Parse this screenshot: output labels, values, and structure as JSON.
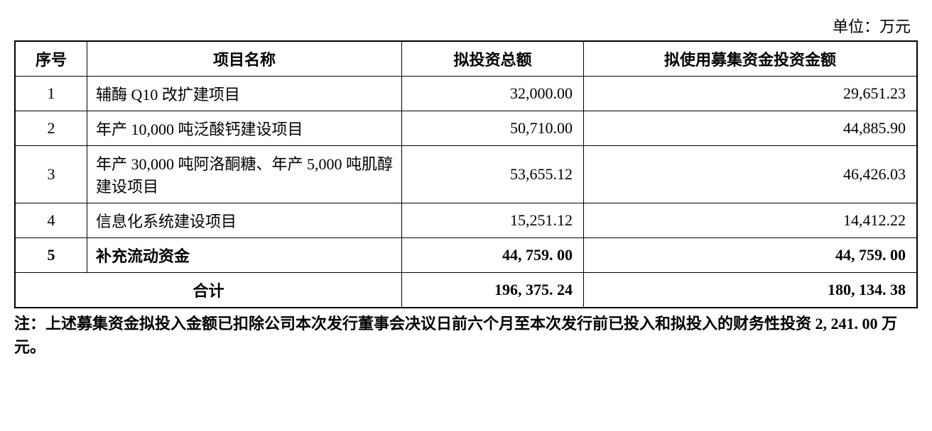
{
  "unit_label": "单位：万元",
  "table": {
    "headers": {
      "seq": "序号",
      "name": "项目名称",
      "invest": "拟投资总额",
      "fund": "拟使用募集资金投资金额"
    },
    "rows": [
      {
        "seq": "1",
        "name": "辅酶 Q10 改扩建项目",
        "invest": "32,000.00",
        "fund": "29,651.23",
        "bold": false
      },
      {
        "seq": "2",
        "name": "年产 10,000 吨泛酸钙建设项目",
        "invest": "50,710.00",
        "fund": "44,885.90",
        "bold": false
      },
      {
        "seq": "3",
        "name": "年产 30,000 吨阿洛酮糖、年产 5,000 吨肌醇建设项目",
        "invest": "53,655.12",
        "fund": "46,426.03",
        "bold": false
      },
      {
        "seq": "4",
        "name": "信息化系统建设项目",
        "invest": "15,251.12",
        "fund": "14,412.22",
        "bold": false
      },
      {
        "seq": "5",
        "name": "补充流动资金",
        "invest": "44, 759. 00",
        "fund": "44, 759. 00",
        "bold": true
      }
    ],
    "total": {
      "label": "合计",
      "invest": "196, 375. 24",
      "fund": "180, 134. 38"
    }
  },
  "footnote": "注：上述募集资金拟投入金额已扣除公司本次发行董事会决议日前六个月至本次发行前已投入和拟投入的财务性投资 2, 241. 00 万元。"
}
